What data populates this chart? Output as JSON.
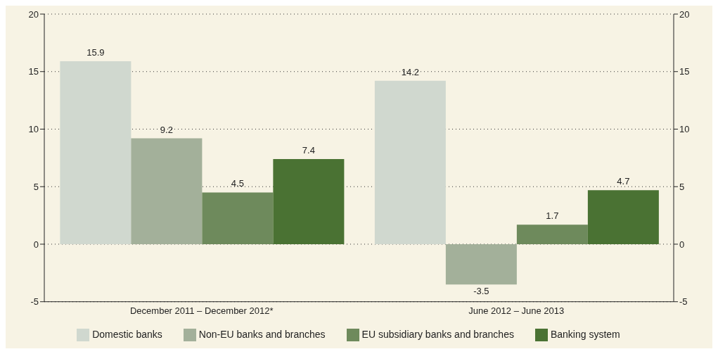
{
  "chart_data": {
    "type": "bar",
    "categories": [
      "December 2011 – December 2012*",
      "June 2012 – June 2013"
    ],
    "series": [
      {
        "name": "Domestic banks",
        "color": "#d0d8cf",
        "values": [
          15.9,
          14.2
        ]
      },
      {
        "name": "Non-EU banks and branches",
        "color": "#a3b09a",
        "values": [
          9.2,
          -3.5
        ]
      },
      {
        "name": "EU subsidiary banks and branches",
        "color": "#6e8a5c",
        "values": [
          4.5,
          1.7
        ]
      },
      {
        "name": "Banking system",
        "color": "#4a7233",
        "values": [
          7.4,
          4.7
        ]
      }
    ],
    "ylim": [
      -5,
      20
    ],
    "yticks": [
      -5,
      0,
      5,
      10,
      15,
      20
    ],
    "y2lim": [
      -5,
      20
    ],
    "y2ticks": [
      -5,
      0,
      5,
      10,
      15,
      20
    ],
    "grid": "y",
    "legend": "bottom",
    "data_labels": true
  }
}
